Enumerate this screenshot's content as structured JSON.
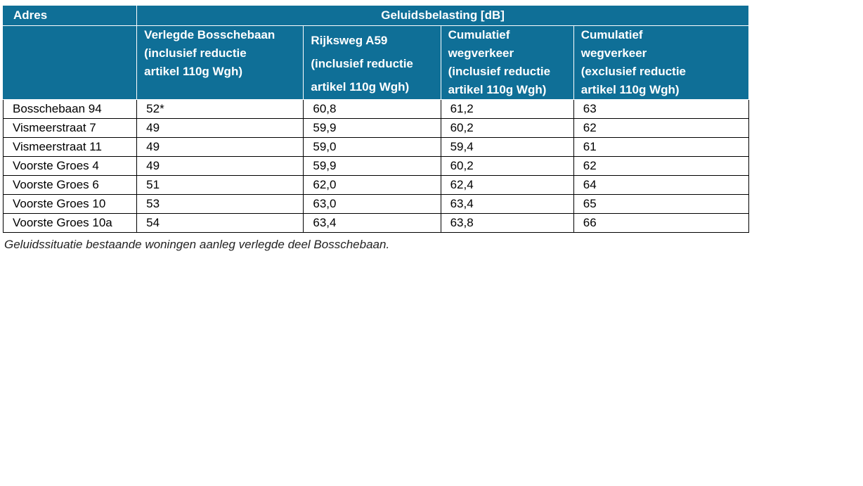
{
  "table": {
    "address_header": "Adres",
    "group_header": "Geluidsbelasting [dB]",
    "column_headers": [
      [
        "Verlegde Bosschebaan",
        "(inclusief reductie",
        "artikel 110g Wgh)"
      ],
      [
        "Rijksweg A59",
        "(inclusief reductie",
        "artikel 110g Wgh)"
      ],
      [
        "Cumulatief",
        "wegverkeer",
        "(inclusief reductie",
        "artikel 110g Wgh)"
      ],
      [
        "Cumulatief",
        "wegverkeer",
        "(exclusief reductie",
        "artikel 110g Wgh)"
      ]
    ],
    "rows": [
      [
        "Bosschebaan 94",
        "52*",
        "60,8",
        "61,2",
        "63"
      ],
      [
        "Vismeerstraat 7",
        "49",
        "59,9",
        "60,2",
        "62"
      ],
      [
        "Vismeerstraat 11",
        "49",
        "59,0",
        "59,4",
        "61"
      ],
      [
        "Voorste Groes 4",
        "49",
        "59,9",
        "60,2",
        "62"
      ],
      [
        "Voorste Groes 6",
        "51",
        "62,0",
        "62,4",
        "64"
      ],
      [
        "Voorste Groes 10",
        "53",
        "63,0",
        "63,4",
        "65"
      ],
      [
        "Voorste Groes 10a",
        "54",
        "63,4",
        "63,8",
        "66"
      ]
    ],
    "header_color": "#0f6f97"
  },
  "caption": "Geluidssituatie bestaande woningen aanleg verlegde deel Bosschebaan."
}
